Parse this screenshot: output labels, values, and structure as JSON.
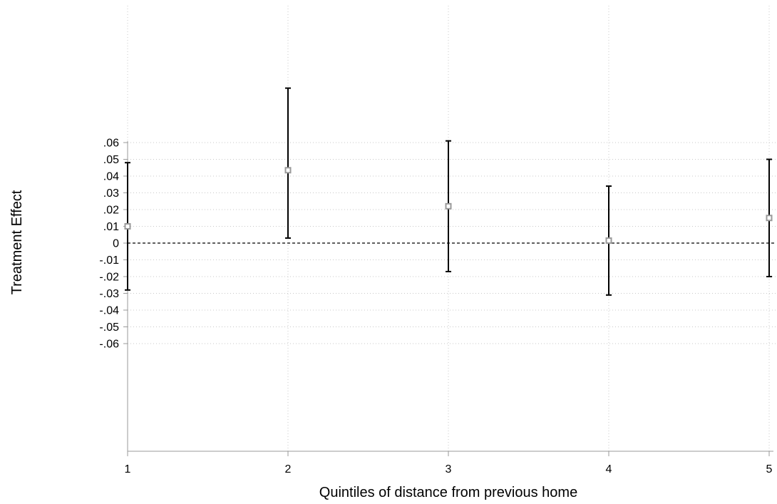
{
  "chart_data": {
    "type": "scatter",
    "title": "",
    "xlabel": "Quintiles of distance from previous home",
    "ylabel": "Treatment Effect",
    "x": [
      1,
      2,
      3,
      4,
      5
    ],
    "xticks": [
      "1",
      "2",
      "3",
      "4",
      "5"
    ],
    "xlim": [
      1,
      5
    ],
    "yticks": [
      ".06",
      ".05",
      ".04",
      ".03",
      ".02",
      ".01",
      "0",
      "-.01",
      "-.02",
      "-.03",
      "-.04",
      "-.05",
      "-.06"
    ],
    "ytick_values": [
      0.06,
      0.05,
      0.04,
      0.03,
      0.02,
      0.01,
      0,
      -0.01,
      -0.02,
      -0.03,
      -0.04,
      -0.05,
      -0.06
    ],
    "ylim": [
      -0.06,
      0.06
    ],
    "grid": true,
    "reference_line": 0,
    "series": [
      {
        "estimate": [
          0.01,
          0.0435,
          0.022,
          0.0015,
          0.015
        ],
        "ci_low": [
          -0.028,
          0.003,
          -0.017,
          -0.031,
          -0.02
        ],
        "ci_high": [
          0.048,
          0.0925,
          0.061,
          0.034,
          0.05
        ]
      }
    ],
    "colors": {
      "marker_stroke": "#9a9a9a",
      "error_bar": "#000000",
      "grid": "#c8c8c8",
      "axis": "#9a9a9a",
      "reference_line": "#000000"
    }
  }
}
